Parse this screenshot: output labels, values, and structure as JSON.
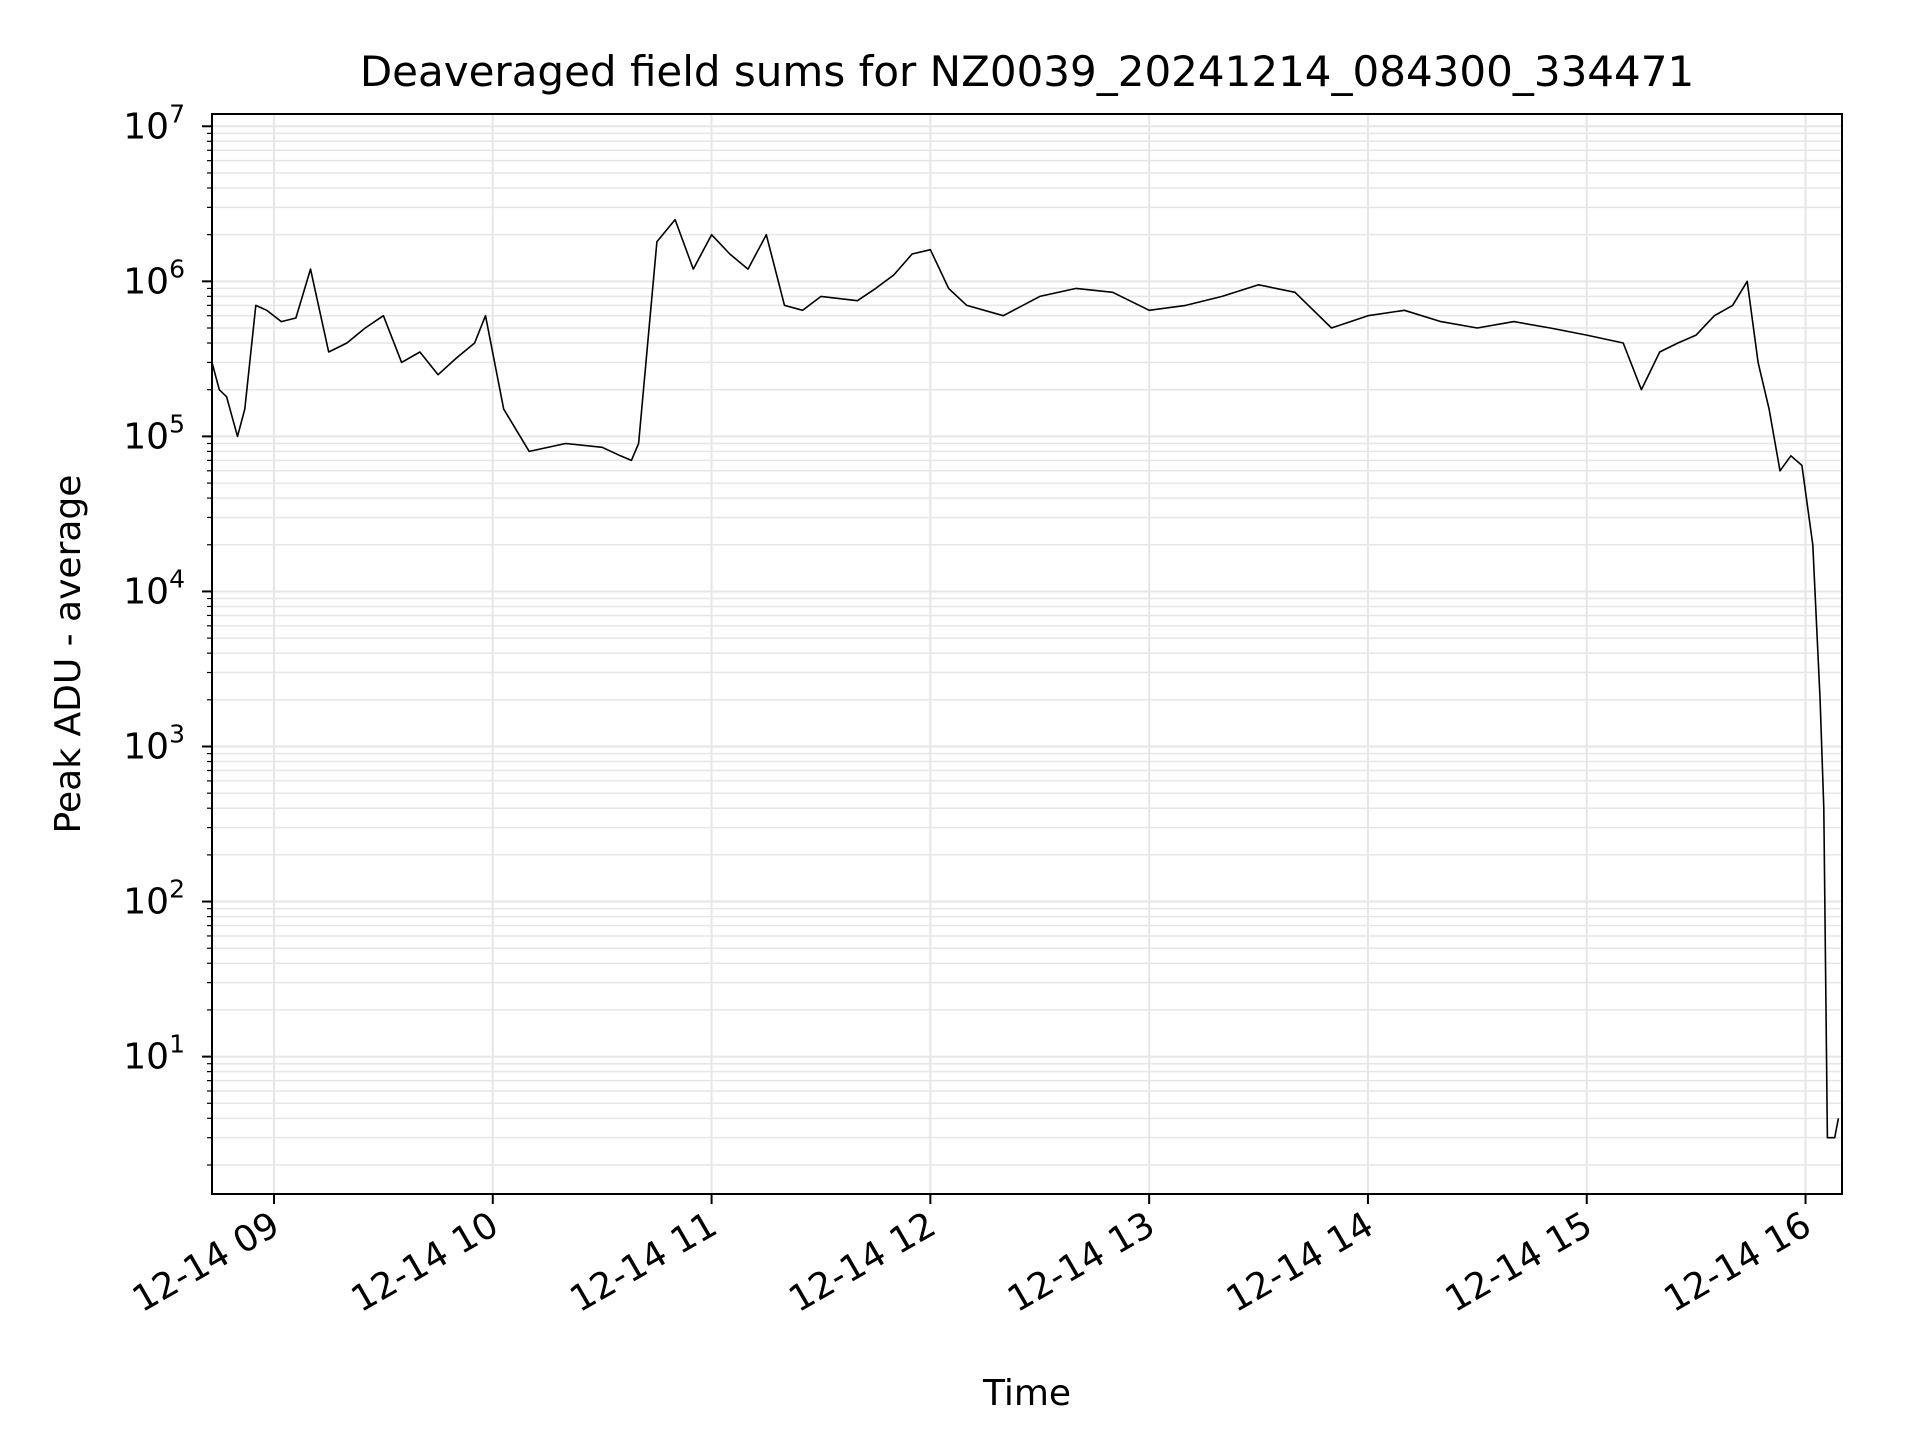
{
  "chart_data": {
    "type": "line",
    "title": "Deaveraged field sums for NZ0039_20241214_084300_334471",
    "xlabel": "Time",
    "ylabel": "Peak ADU - average",
    "yscale": "log",
    "ylim": [
      1.3,
      12000000
    ],
    "xlim": [
      "2024-12-14 08:43",
      "2024-12-14 16:10"
    ],
    "grid": true,
    "line_color": "#000000",
    "grid_color": "#e6e6e6",
    "x_ticks": [
      {
        "x": "2024-12-14 09:00",
        "label": "12-14 09"
      },
      {
        "x": "2024-12-14 10:00",
        "label": "12-14 10"
      },
      {
        "x": "2024-12-14 11:00",
        "label": "12-14 11"
      },
      {
        "x": "2024-12-14 12:00",
        "label": "12-14 12"
      },
      {
        "x": "2024-12-14 13:00",
        "label": "12-14 13"
      },
      {
        "x": "2024-12-14 14:00",
        "label": "12-14 14"
      },
      {
        "x": "2024-12-14 15:00",
        "label": "12-14 15"
      },
      {
        "x": "2024-12-14 16:00",
        "label": "12-14 16"
      }
    ],
    "y_ticks": [
      {
        "value": 10,
        "base": "10",
        "exp": "1"
      },
      {
        "value": 100,
        "base": "10",
        "exp": "2"
      },
      {
        "value": 1000,
        "base": "10",
        "exp": "3"
      },
      {
        "value": 10000,
        "base": "10",
        "exp": "4"
      },
      {
        "value": 100000,
        "base": "10",
        "exp": "5"
      },
      {
        "value": 1000000,
        "base": "10",
        "exp": "6"
      },
      {
        "value": 10000000,
        "base": "10",
        "exp": "7"
      }
    ],
    "series": [
      {
        "x": [
          "2024-12-14 08:43",
          "2024-12-14 08:45",
          "2024-12-14 08:47",
          "2024-12-14 08:50",
          "2024-12-14 08:52",
          "2024-12-14 08:55",
          "2024-12-14 08:58",
          "2024-12-14 09:02",
          "2024-12-14 09:06",
          "2024-12-14 09:10",
          "2024-12-14 09:15",
          "2024-12-14 09:20",
          "2024-12-14 09:25",
          "2024-12-14 09:30",
          "2024-12-14 09:35",
          "2024-12-14 09:40",
          "2024-12-14 09:45",
          "2024-12-14 09:50",
          "2024-12-14 09:55",
          "2024-12-14 09:58",
          "2024-12-14 10:03",
          "2024-12-14 10:10",
          "2024-12-14 10:20",
          "2024-12-14 10:30",
          "2024-12-14 10:35",
          "2024-12-14 10:38",
          "2024-12-14 10:40",
          "2024-12-14 10:45",
          "2024-12-14 10:50",
          "2024-12-14 10:55",
          "2024-12-14 11:00",
          "2024-12-14 11:05",
          "2024-12-14 11:10",
          "2024-12-14 11:15",
          "2024-12-14 11:20",
          "2024-12-14 11:25",
          "2024-12-14 11:30",
          "2024-12-14 11:40",
          "2024-12-14 11:45",
          "2024-12-14 11:50",
          "2024-12-14 11:55",
          "2024-12-14 12:00",
          "2024-12-14 12:05",
          "2024-12-14 12:10",
          "2024-12-14 12:20",
          "2024-12-14 12:30",
          "2024-12-14 12:40",
          "2024-12-14 12:50",
          "2024-12-14 13:00",
          "2024-12-14 13:10",
          "2024-12-14 13:20",
          "2024-12-14 13:30",
          "2024-12-14 13:40",
          "2024-12-14 13:50",
          "2024-12-14 14:00",
          "2024-12-14 14:10",
          "2024-12-14 14:20",
          "2024-12-14 14:30",
          "2024-12-14 14:40",
          "2024-12-14 14:50",
          "2024-12-14 15:00",
          "2024-12-14 15:10",
          "2024-12-14 15:15",
          "2024-12-14 15:20",
          "2024-12-14 15:25",
          "2024-12-14 15:30",
          "2024-12-14 15:35",
          "2024-12-14 15:40",
          "2024-12-14 15:44",
          "2024-12-14 15:47",
          "2024-12-14 15:50",
          "2024-12-14 15:53",
          "2024-12-14 15:56",
          "2024-12-14 15:59",
          "2024-12-14 16:02",
          "2024-12-14 16:04",
          "2024-12-14 16:05",
          "2024-12-14 16:06",
          "2024-12-14 16:07",
          "2024-12-14 16:08",
          "2024-12-14 16:09"
        ],
        "y": [
          300000,
          200000,
          180000,
          100000,
          150000,
          700000,
          650000,
          550000,
          580000,
          1200000,
          350000,
          400000,
          500000,
          600000,
          300000,
          350000,
          250000,
          320000,
          400000,
          600000,
          150000,
          80000,
          90000,
          85000,
          75000,
          70000,
          90000,
          1800000,
          2500000,
          1200000,
          2000000,
          1500000,
          1200000,
          2000000,
          700000,
          650000,
          800000,
          750000,
          900000,
          1100000,
          1500000,
          1600000,
          900000,
          700000,
          600000,
          800000,
          900000,
          850000,
          650000,
          700000,
          800000,
          950000,
          850000,
          500000,
          600000,
          650000,
          550000,
          500000,
          550000,
          500000,
          450000,
          400000,
          200000,
          350000,
          400000,
          450000,
          600000,
          700000,
          1000000,
          300000,
          150000,
          60000,
          75000,
          65000,
          20000,
          2000,
          400,
          3,
          3,
          3,
          4
        ]
      }
    ]
  }
}
